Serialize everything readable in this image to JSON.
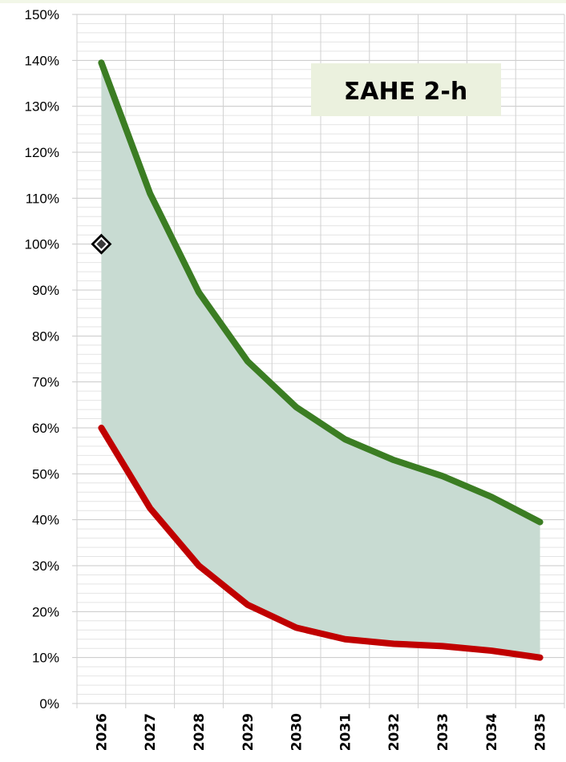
{
  "chart_data": {
    "type": "area",
    "title": "ΣΑΗΕ 2-h",
    "xlabel": "",
    "ylabel": "",
    "categories": [
      "2026",
      "2027",
      "2028",
      "2029",
      "2030",
      "2031",
      "2032",
      "2033",
      "2034",
      "2035"
    ],
    "ylim": [
      0,
      150
    ],
    "y_tick_step": 10,
    "y_tick_format": "percent",
    "y_ticks": [
      "0%",
      "10%",
      "20%",
      "30%",
      "40%",
      "50%",
      "60%",
      "70%",
      "80%",
      "90%",
      "100%",
      "110%",
      "120%",
      "130%",
      "140%",
      "150%"
    ],
    "grid": true,
    "series": [
      {
        "values": [
          139.5,
          111,
          89.5,
          74.5,
          64.5,
          57.5,
          53,
          49.5,
          45,
          39.5
        ],
        "color": "#3b7d23",
        "style": "line"
      },
      {
        "values": [
          60,
          42.5,
          30,
          21.5,
          16.5,
          14,
          13,
          12.5,
          11.5,
          10
        ],
        "color": "#c00000",
        "style": "line"
      }
    ],
    "band": {
      "between": [
        0,
        1
      ],
      "color": "#c8dbd2"
    },
    "markers": [
      {
        "category": "2026",
        "value": 100,
        "shape": "diamond",
        "color": "#000000"
      }
    ],
    "title_background": "#ebf1de",
    "header_strip_color": "#f2f7e8"
  }
}
